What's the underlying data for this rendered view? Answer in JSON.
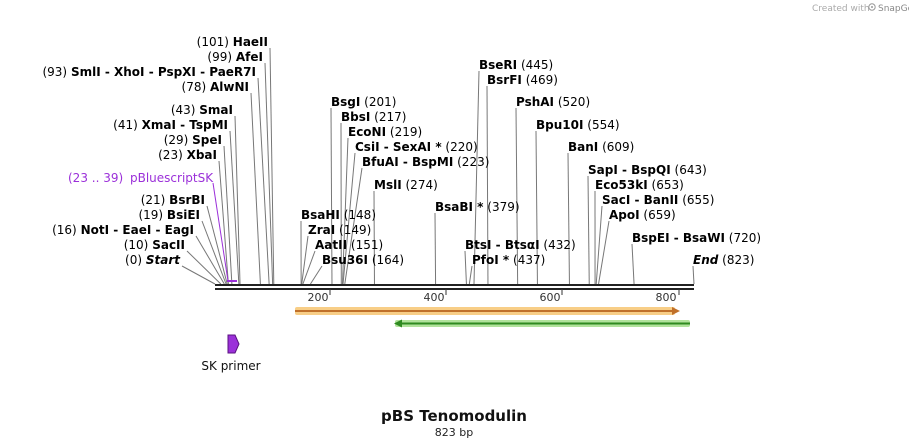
{
  "credit": {
    "prefix": "Created with",
    "brand": "SnapGene"
  },
  "sequence": {
    "name": "pBS Tenomodulin",
    "length_label": "823 bp",
    "length": 823
  },
  "axis": {
    "ticks": [
      "200",
      "400",
      "600",
      "800"
    ]
  },
  "colors": {
    "backbone": "#222222",
    "feature_purple": "#9b30d9",
    "orange_feature": "#f4a640",
    "orange_edge": "#c0702a",
    "green_feature": "#4fc033",
    "green_edge": "#2f8a20",
    "leader_line": "#777777"
  },
  "sites": [
    {
      "text": "HaeII",
      "pos": "(101)"
    },
    {
      "text": "AfeI",
      "pos": "(99)"
    },
    {
      "text": "SmlI  -  XhoI  -  PspXI  -  PaeR7I",
      "pos": "(93)"
    },
    {
      "text": "AlwNI",
      "pos": "(78)"
    },
    {
      "text": "SmaI",
      "pos": "(43)"
    },
    {
      "text": "XmaI  -  TspMI",
      "pos": "(41)"
    },
    {
      "text": "SpeI",
      "pos": "(29)"
    },
    {
      "text": "XbaI",
      "pos": "(23)"
    },
    {
      "text": "BsrBI",
      "pos": "(21)"
    },
    {
      "text": "BsiEI",
      "pos": "(19)"
    },
    {
      "text": "NotI  -  EaeI  -  EagI",
      "pos": "(16)"
    },
    {
      "text": "SacII",
      "pos": "(10)"
    },
    {
      "text": "Start",
      "pos": "(0)"
    },
    {
      "text": "BsgI",
      "pos": "(201)"
    },
    {
      "text": "BbsI",
      "pos": "(217)"
    },
    {
      "text": "EcoNI",
      "pos": "(219)"
    },
    {
      "text": "CsiI  -  SexAI *",
      "pos": "(220)"
    },
    {
      "text": "BfuAI  -  BspMI",
      "pos": "(223)"
    },
    {
      "text": "MslI",
      "pos": "(274)"
    },
    {
      "text": "BsaHI",
      "pos": "(148)"
    },
    {
      "text": "ZraI",
      "pos": "(149)"
    },
    {
      "text": "AatII",
      "pos": "(151)"
    },
    {
      "text": "Bsu36I",
      "pos": "(164)"
    },
    {
      "text": "BseRI",
      "pos": "(445)"
    },
    {
      "text": "BsrFI",
      "pos": "(469)"
    },
    {
      "text": "PshAI",
      "pos": "(520)"
    },
    {
      "text": "Bpu10I",
      "pos": "(554)"
    },
    {
      "text": "BanI",
      "pos": "(609)"
    },
    {
      "text": "SapI  -  BspQI",
      "pos": "(643)"
    },
    {
      "text": "Eco53kI",
      "pos": "(653)"
    },
    {
      "text": "SacI  -  BanII",
      "pos": "(655)"
    },
    {
      "text": "ApoI",
      "pos": "(659)"
    },
    {
      "text": "BspEI  -  BsaWI",
      "pos": "(720)"
    },
    {
      "text": "End",
      "pos": "(823)"
    },
    {
      "text": "BsaBI *",
      "pos": "(379)"
    },
    {
      "text": "BtsI  -  BtsαI",
      "pos": "(432)"
    },
    {
      "text": "PfoI *",
      "pos": "(437)"
    }
  ],
  "feature_label": {
    "range": "(23 .. 39)",
    "name": "pBluescriptSK"
  },
  "primer": {
    "name": "SK primer"
  }
}
